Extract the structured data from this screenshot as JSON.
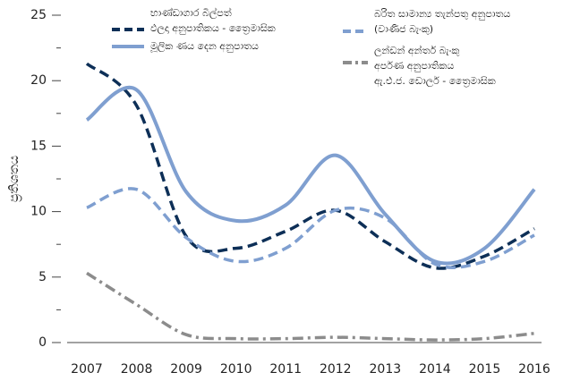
{
  "chart_data": {
    "type": "line",
    "y_label": "ප්‍රතිශතය",
    "x": [
      2007,
      2008,
      2009,
      2010,
      2011,
      2012,
      2013,
      2014,
      2015,
      2016
    ],
    "xlim": [
      2007,
      2016
    ],
    "xticks": [
      2007,
      2008,
      2009,
      2010,
      2011,
      2012,
      2013,
      2014,
      2015,
      2016
    ],
    "ylim": [
      0,
      25
    ],
    "yticks": [
      0,
      5,
      10,
      15,
      20,
      25
    ],
    "yminorticks": [
      2.5,
      7.5,
      12.5,
      17.5,
      22.5
    ],
    "smooth": true,
    "series": [
      {
        "name": "භාණ්ඩාගාර බිල්පත්\nඵලදා අනුපාතිකය - ත්‍රෛමාසික",
        "color": "#0d2f57",
        "dash": "dashed",
        "values": [
          21.3,
          18.1,
          8.1,
          7.2,
          8.5,
          10.1,
          7.7,
          5.7,
          6.6,
          8.7
        ]
      },
      {
        "name": "මූලික ණය දෙන අනුපාතය",
        "color": "#7f9fd0",
        "dash": "solid",
        "values": [
          17,
          19.3,
          11.5,
          9.3,
          10.5,
          14.3,
          9.8,
          6.2,
          7.2,
          11.7
        ]
      },
      {
        "name": "බරිත සාමාන්‍ය තැන්පතු අනුපාතය\n(වාණිජ බැංකු)",
        "color": "#7f9fd0",
        "dash": "dashed",
        "values": [
          10.3,
          11.7,
          8,
          6.2,
          7.2,
          10.1,
          9.5,
          6,
          6.2,
          8.2
        ]
      },
      {
        "name": "ලන්ඩන් අන්තර් බැංකු\nඅර්පණ අනුපාතිකය\nඇ.එ.ජ. ඩොලර් - ත්‍රෛමාසික",
        "color": "#8c8c8c",
        "dash": "dashdot",
        "values": [
          5.3,
          2.9,
          0.6,
          0.3,
          0.3,
          0.4,
          0.3,
          0.2,
          0.3,
          0.7
        ]
      }
    ]
  }
}
